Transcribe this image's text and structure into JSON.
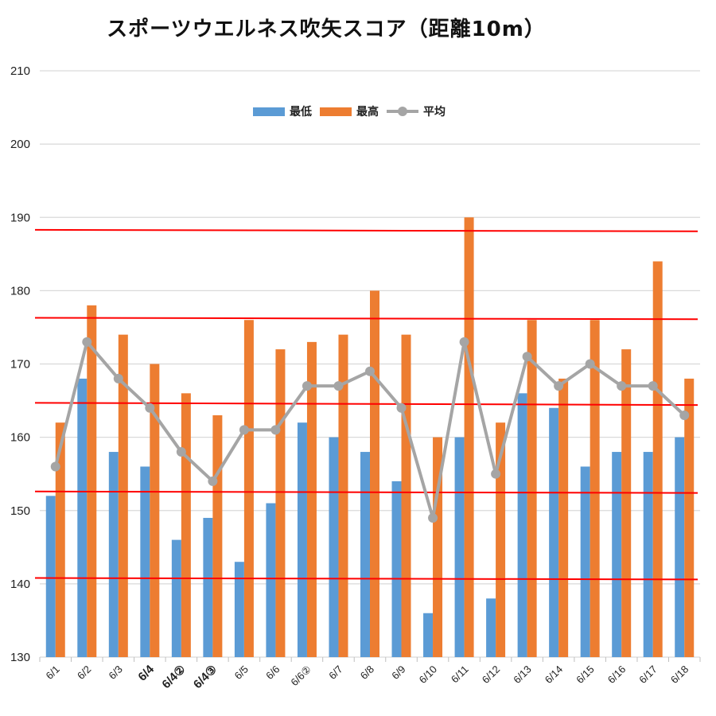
{
  "chart_data": {
    "type": "bar",
    "title": "スポーツウエルネス吹矢スコア（距離10m）",
    "categories": [
      "6/1",
      "6/2",
      "6/3",
      "6/4",
      "6/4②",
      "6/4③",
      "6/5",
      "6/6",
      "6/6②",
      "6/7",
      "6/8",
      "6/9",
      "6/10",
      "6/11",
      "6/12",
      "6/13",
      "6/14",
      "6/15",
      "6/16",
      "6/17",
      "6/18"
    ],
    "bold_categories": [
      "6/4",
      "6/4②",
      "6/4③"
    ],
    "series": [
      {
        "name": "最低",
        "type": "bar",
        "color": "#5b9bd5",
        "values": [
          152,
          168,
          158,
          156,
          146,
          149,
          143,
          151,
          162,
          160,
          158,
          154,
          136,
          160,
          138,
          166,
          164,
          156,
          158,
          158,
          160
        ]
      },
      {
        "name": "最高",
        "type": "bar",
        "color": "#ed7d31",
        "values": [
          162,
          178,
          174,
          170,
          166,
          163,
          176,
          172,
          173,
          174,
          180,
          174,
          160,
          190,
          162,
          176,
          168,
          176,
          172,
          184,
          168
        ]
      },
      {
        "name": "平均",
        "type": "line",
        "color": "#a5a5a5",
        "values": [
          156,
          173,
          168,
          164,
          158,
          154,
          161,
          161,
          167,
          167,
          169,
          164,
          149,
          173,
          155,
          171,
          167,
          170,
          167,
          167,
          163
        ]
      }
    ],
    "ylim": [
      130,
      210
    ],
    "yticks": [
      130,
      140,
      150,
      160,
      170,
      180,
      190,
      200,
      210
    ],
    "grid": true,
    "legend_position": "top",
    "reference_lines": {
      "color": "#ff0000",
      "lines": [
        {
          "left": 188.3,
          "right": 188.1
        },
        {
          "left": 176.3,
          "right": 176.1
        },
        {
          "left": 164.7,
          "right": 164.4
        },
        {
          "left": 152.6,
          "right": 152.4
        },
        {
          "left": 140.8,
          "right": 140.6
        }
      ]
    }
  }
}
